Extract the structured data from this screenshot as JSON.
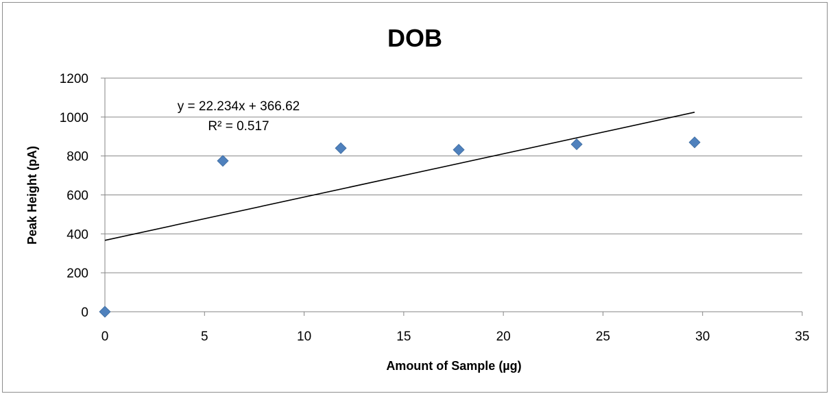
{
  "chart_data": {
    "type": "scatter",
    "title": "DOB",
    "xlabel": "Amount of Sample (µg)",
    "ylabel": "Peak Height (pA)",
    "xlim": [
      0,
      35
    ],
    "ylim": [
      0,
      1200
    ],
    "x_ticks": [
      "0",
      "5",
      "10",
      "15",
      "20",
      "25",
      "30",
      "35"
    ],
    "y_ticks": [
      "0",
      "200",
      "400",
      "600",
      "800",
      "1000",
      "1200"
    ],
    "grid": "horizontal",
    "legend": "none",
    "series": [
      {
        "marker": "diamond",
        "color": "#4f81bd",
        "x": [
          0,
          5.92,
          11.84,
          17.76,
          23.68,
          29.6
        ],
        "y": [
          0,
          775,
          840,
          832,
          860,
          870
        ]
      }
    ],
    "trendline": {
      "type": "linear",
      "slope": 22.234,
      "intercept": 366.62,
      "x_range": [
        0,
        29.6
      ],
      "color": "#000000",
      "equation_label": "y = 22.234x + 366.62",
      "r2_label": "R² = 0.517"
    }
  }
}
